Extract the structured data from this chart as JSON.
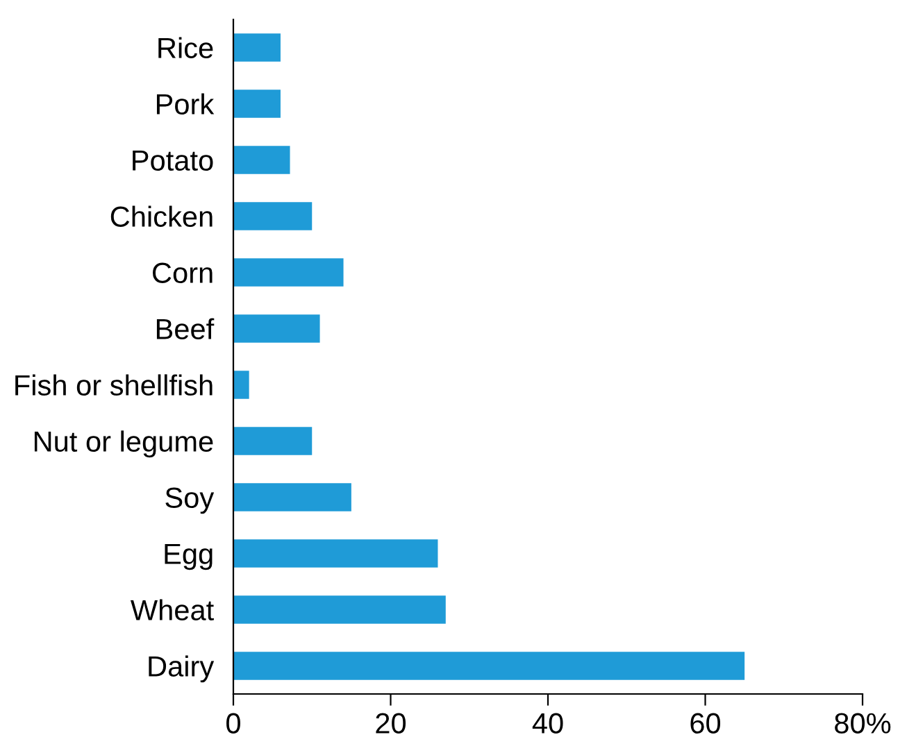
{
  "chart_data": {
    "type": "bar",
    "orientation": "horizontal",
    "categories": [
      "Rice",
      "Pork",
      "Potato",
      "Chicken",
      "Corn",
      "Beef",
      "Fish or shellfish",
      "Nut or legume",
      "Soy",
      "Egg",
      "Wheat",
      "Dairy"
    ],
    "values": [
      6,
      6,
      7.2,
      10,
      14,
      11,
      2,
      10,
      15,
      26,
      27,
      65
    ],
    "color": "#1f9bd7",
    "xlim": [
      0,
      80
    ],
    "xticks": [
      0,
      20,
      40,
      60,
      {
        "value": 80,
        "label": "80%"
      }
    ],
    "grid": false,
    "legend": false
  }
}
